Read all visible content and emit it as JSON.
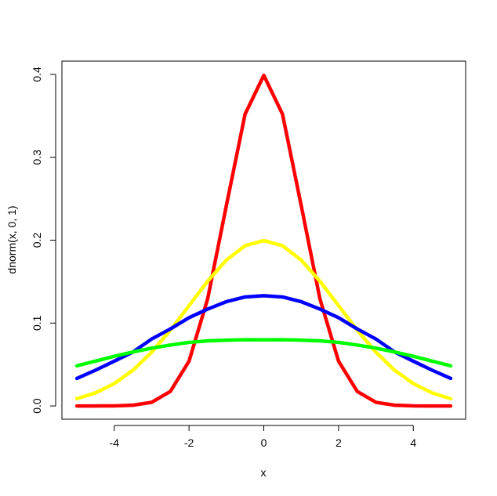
{
  "chart_data": {
    "type": "line",
    "title": "",
    "xlabel": "x",
    "ylabel": "dnorm(x, 0, 1)",
    "xlim": [
      -5.4,
      5.4
    ],
    "ylim": [
      -0.016,
      0.416
    ],
    "x_ticks": [
      -4,
      -2,
      0,
      2,
      4
    ],
    "x_tick_labels": [
      "-4",
      "-2",
      "0",
      "2",
      "4"
    ],
    "y_ticks": [
      0.0,
      0.1,
      0.2,
      0.3,
      0.4
    ],
    "y_tick_labels": [
      "0.0",
      "0.1",
      "0.2",
      "0.3",
      "0.4"
    ],
    "grid": false,
    "legend": "none",
    "x": [
      -5,
      -4.5,
      -4,
      -3.5,
      -3,
      -2.5,
      -2,
      -1.5,
      -1,
      -0.5,
      0,
      0.5,
      1,
      1.5,
      2,
      2.5,
      3,
      3.5,
      4,
      4.5,
      5
    ],
    "series": [
      {
        "color": "#ff0000",
        "values": [
          0.0,
          0.0,
          0.0001,
          0.0009,
          0.0044,
          0.0175,
          0.054,
          0.1295,
          0.242,
          0.3521,
          0.3989,
          0.3521,
          0.242,
          0.1295,
          0.054,
          0.0175,
          0.0044,
          0.0009,
          0.0001,
          0.0,
          0.0
        ]
      },
      {
        "color": "#ffff00",
        "values": [
          0.0088,
          0.0158,
          0.027,
          0.0431,
          0.0648,
          0.0913,
          0.121,
          0.1506,
          0.176,
          0.1933,
          0.1995,
          0.1933,
          0.176,
          0.1506,
          0.121,
          0.0913,
          0.0648,
          0.0431,
          0.027,
          0.0158,
          0.0088
        ]
      },
      {
        "color": "#0000ff",
        "values": [
          0.0332,
          0.0432,
          0.054,
          0.0651,
          0.0807,
          0.0929,
          0.1065,
          0.1169,
          0.1258,
          0.1315,
          0.133,
          0.1315,
          0.1258,
          0.1169,
          0.1065,
          0.0929,
          0.0807,
          0.0651,
          0.054,
          0.0432,
          0.0332
        ]
      },
      {
        "color": "#00ff00",
        "values": [
          0.0484,
          0.0541,
          0.0599,
          0.0651,
          0.0697,
          0.0735,
          0.0767,
          0.0785,
          0.0794,
          0.0799,
          0.0798,
          0.0799,
          0.0794,
          0.0785,
          0.0767,
          0.0735,
          0.0697,
          0.0651,
          0.0599,
          0.0541,
          0.0484
        ]
      }
    ]
  }
}
